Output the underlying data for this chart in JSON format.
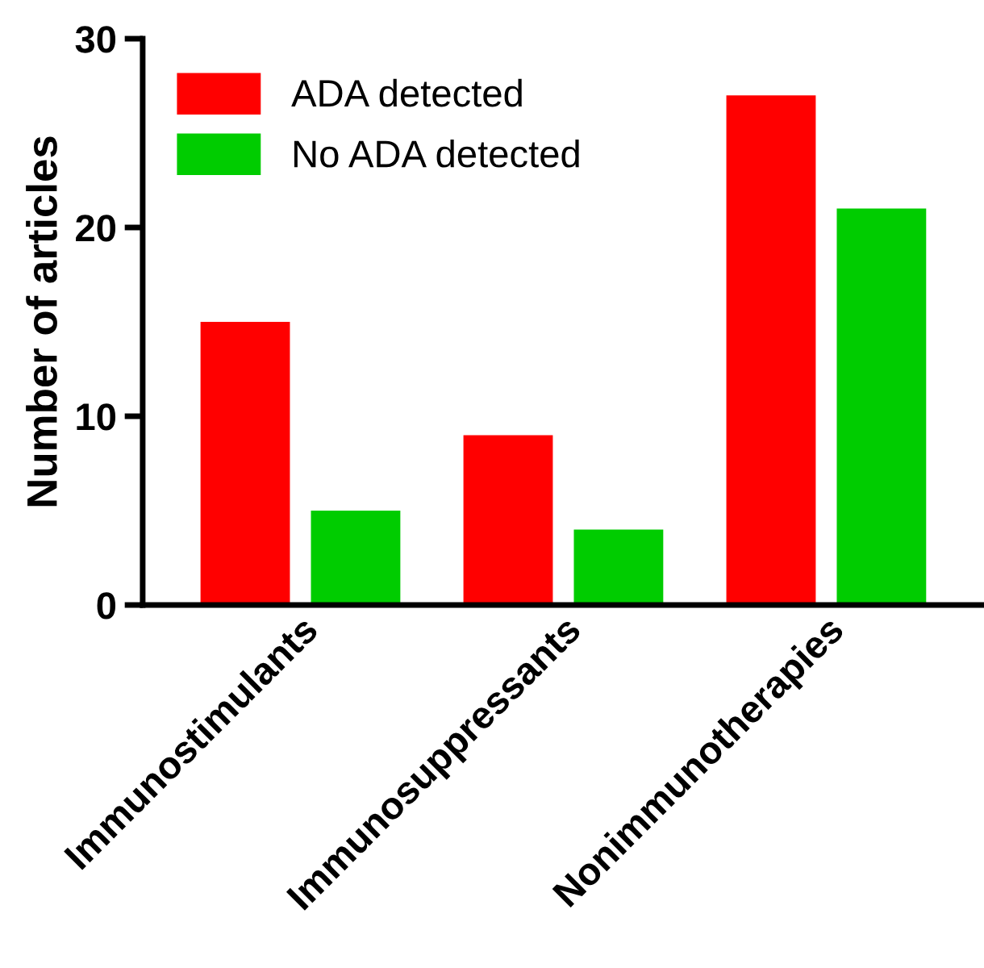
{
  "chart_data": {
    "type": "bar",
    "ylabel": "Number of articles",
    "categories": [
      "Immunostimulants",
      "Immunosuppressants",
      "Nonimmunotherapies"
    ],
    "series": [
      {
        "name": "ADA detected",
        "color": "#ff0000",
        "values": [
          15,
          9,
          27
        ]
      },
      {
        "name": "No ADA detected",
        "color": "#00cc00",
        "values": [
          5,
          4,
          21
        ]
      }
    ],
    "ylim": [
      0,
      30
    ],
    "yticks": [
      0,
      10,
      20,
      30
    ],
    "grid": false,
    "legend": "top left"
  }
}
